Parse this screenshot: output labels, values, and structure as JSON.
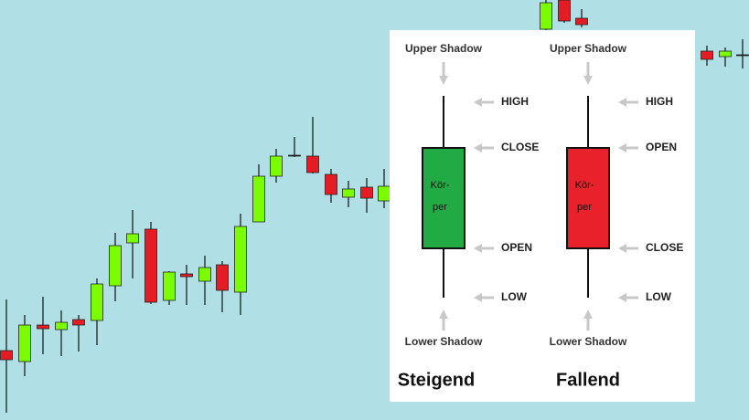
{
  "panels": [
    {
      "upper": "Upper Shadow",
      "lower": "Lower Shadow",
      "body_label": [
        "Kör-",
        "per"
      ],
      "labels": [
        "HIGH",
        "CLOSE",
        "OPEN",
        "LOW"
      ],
      "title": "Steigend"
    },
    {
      "upper": "Upper Shadow",
      "lower": "Lower Shadow",
      "body_label": [
        "Kör-",
        "per"
      ],
      "labels": [
        "HIGH",
        "OPEN",
        "CLOSE",
        "LOW"
      ],
      "title": "Fallend"
    }
  ]
}
